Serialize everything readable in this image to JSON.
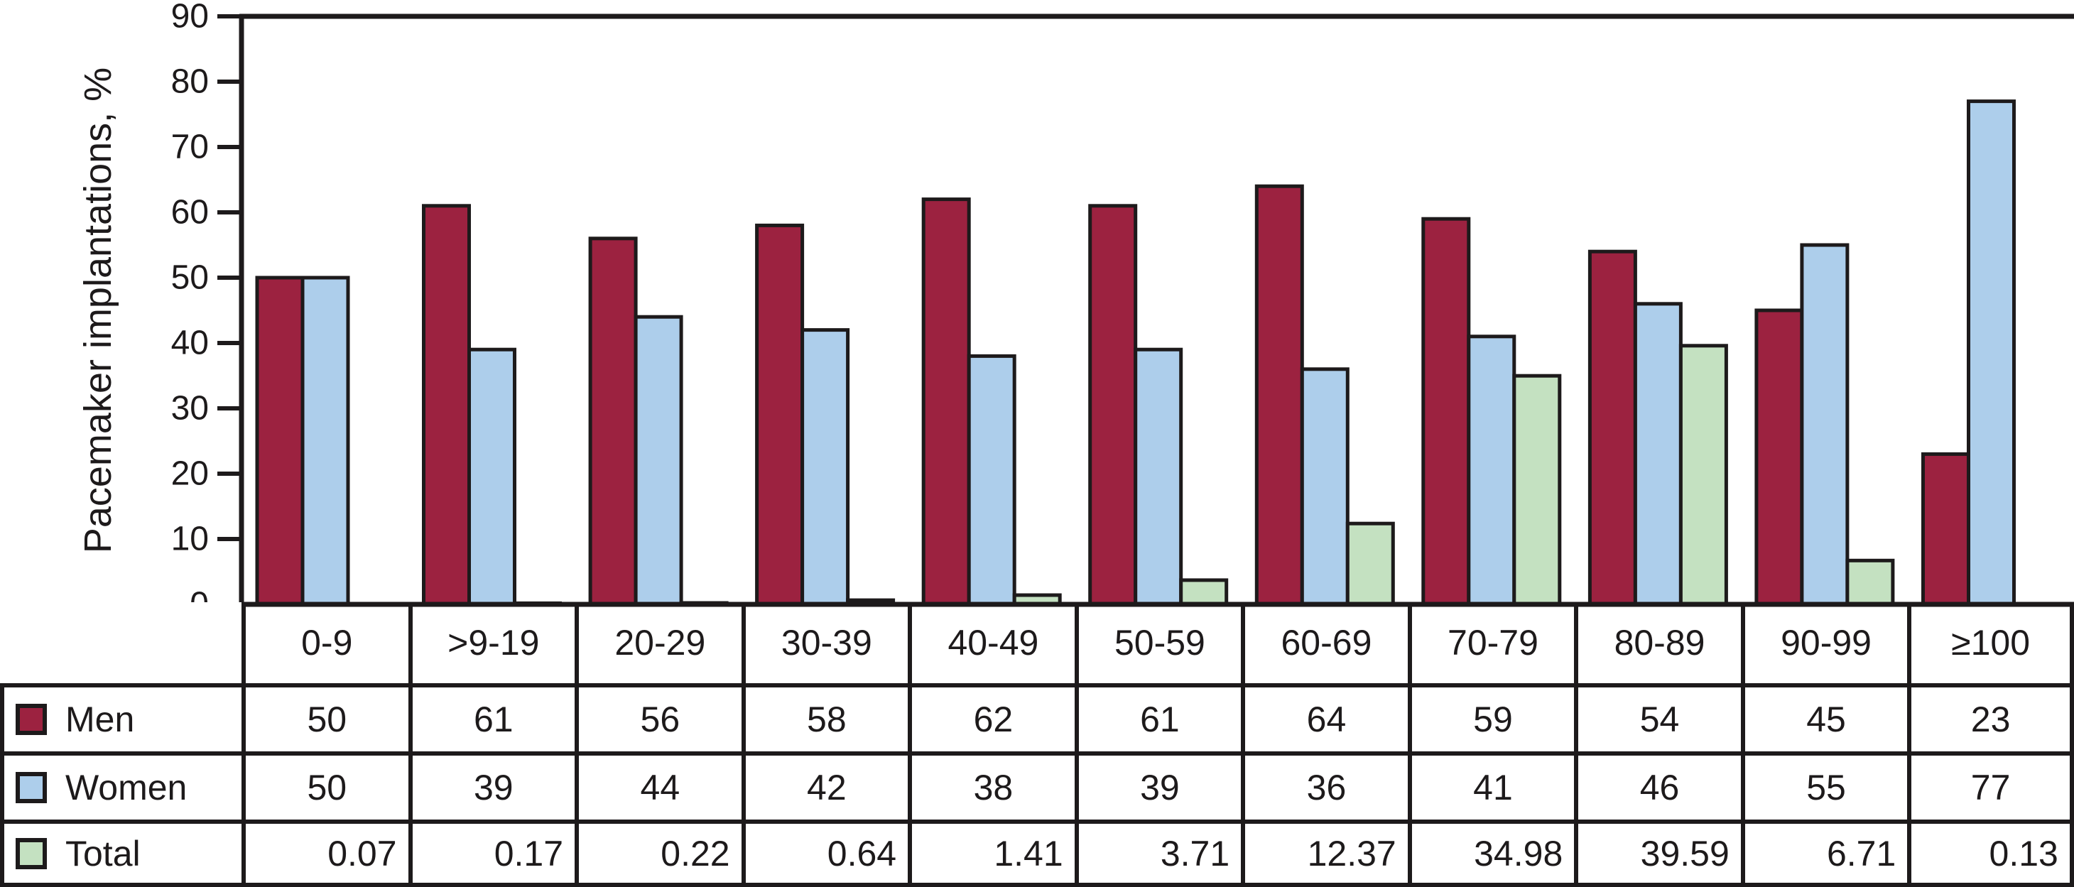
{
  "colors": {
    "background": "#FFFFFF",
    "line": "#1D1A1B",
    "text": "#1D1A1B",
    "men": "#9C2240",
    "women": "#ADCEEB",
    "total": "#C4E1C1"
  },
  "chart_data": {
    "type": "bar",
    "title": "",
    "ylabel": "Pacemaker implantations, %",
    "xlabel": "",
    "ylim": [
      0,
      90
    ],
    "yticks": [
      0,
      10,
      20,
      30,
      40,
      50,
      60,
      70,
      80,
      90
    ],
    "grid": false,
    "legend_position": "table-below",
    "categories": [
      "0-9",
      ">9-19",
      "20-29",
      "30-39",
      "40-49",
      "50-59",
      "60-69",
      "70-79",
      "80-89",
      "90-99",
      "≥100"
    ],
    "series": [
      {
        "name": "Men",
        "color": "#9C2240",
        "values": [
          50,
          61,
          56,
          58,
          62,
          61,
          64,
          59,
          54,
          45,
          23
        ]
      },
      {
        "name": "Women",
        "color": "#ADCEEB",
        "values": [
          50,
          39,
          44,
          42,
          38,
          39,
          36,
          41,
          46,
          55,
          77
        ]
      },
      {
        "name": "Total",
        "color": "#C4E1C1",
        "values": [
          0.07,
          0.17,
          0.22,
          0.64,
          1.41,
          3.71,
          12.37,
          34.98,
          39.59,
          6.71,
          0.13
        ]
      }
    ]
  },
  "table": {
    "rows": [
      {
        "label": "Men",
        "swatch_color": "#9C2240",
        "align": "center",
        "values": [
          "50",
          "61",
          "56",
          "58",
          "62",
          "61",
          "64",
          "59",
          "54",
          "45",
          "23"
        ]
      },
      {
        "label": "Women",
        "swatch_color": "#ADCEEB",
        "align": "center",
        "values": [
          "50",
          "39",
          "44",
          "42",
          "38",
          "39",
          "36",
          "41",
          "46",
          "55",
          "77"
        ]
      },
      {
        "label": "Total",
        "swatch_color": "#C4E1C1",
        "align": "right",
        "values": [
          "0.07",
          "0.17",
          "0.22",
          "0.64",
          "1.41",
          "3.71",
          "12.37",
          "34.98",
          "39.59",
          "6.71",
          "0.13"
        ]
      }
    ]
  }
}
